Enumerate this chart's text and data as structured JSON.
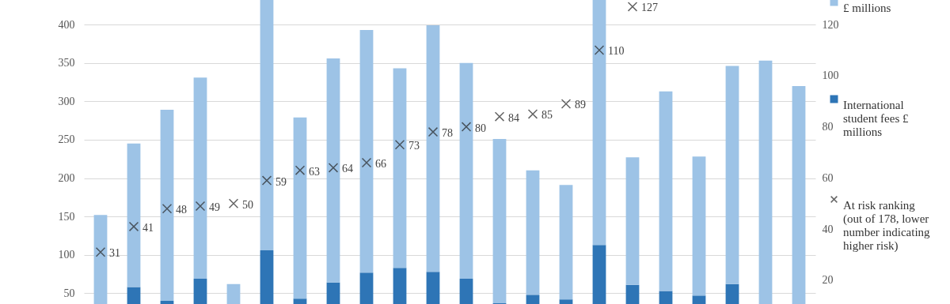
{
  "chart_data": {
    "type": "bar",
    "stacked": true,
    "categories": [
      null,
      null,
      null,
      null,
      null,
      null,
      null,
      null,
      null,
      null,
      null,
      null,
      null,
      null,
      null,
      null,
      null,
      null,
      null,
      null,
      null,
      null
    ],
    "ylim": [
      36,
      432
    ],
    "yticks": [
      50,
      100,
      150,
      200,
      250,
      300,
      350,
      400
    ],
    "y2lim": [
      10.7,
      129.6
    ],
    "y2ticks": [
      20,
      40,
      60,
      80,
      100,
      120
    ],
    "grid": "y",
    "legend": "right",
    "series": [
      {
        "name": "International student fees £ millions",
        "color": "#2e75b6",
        "values": [
          null,
          58,
          40,
          69,
          null,
          106,
          43,
          64,
          77,
          83,
          78,
          69,
          37,
          48,
          42,
          113,
          61,
          53,
          47,
          62,
          null,
          null
        ]
      },
      {
        "name": "£ millions",
        "color": "#9dc3e6",
        "values": [
          152,
          187,
          249,
          262,
          62,
          326,
          236,
          292,
          316,
          260,
          321,
          281,
          214,
          162,
          149,
          319,
          166,
          260,
          181,
          284,
          353,
          320
        ]
      },
      {
        "type": "scatter",
        "axis": "y2",
        "marker": "cross",
        "name": "At risk ranking (out of 178, lower number indicating higher risk)",
        "color": "#262626",
        "values": [
          31,
          41,
          48,
          49,
          50,
          59,
          63,
          64,
          66,
          73,
          78,
          80,
          84,
          85,
          89,
          110,
          127,
          null,
          null,
          null,
          null,
          null
        ],
        "value_labels": [
          "31",
          "41",
          "48",
          "49",
          "50",
          "59",
          "63",
          "64",
          "66",
          "73",
          "78",
          "80",
          "84",
          "85",
          "89",
          "110",
          "127",
          null,
          null,
          null,
          null,
          null
        ]
      }
    ]
  }
}
